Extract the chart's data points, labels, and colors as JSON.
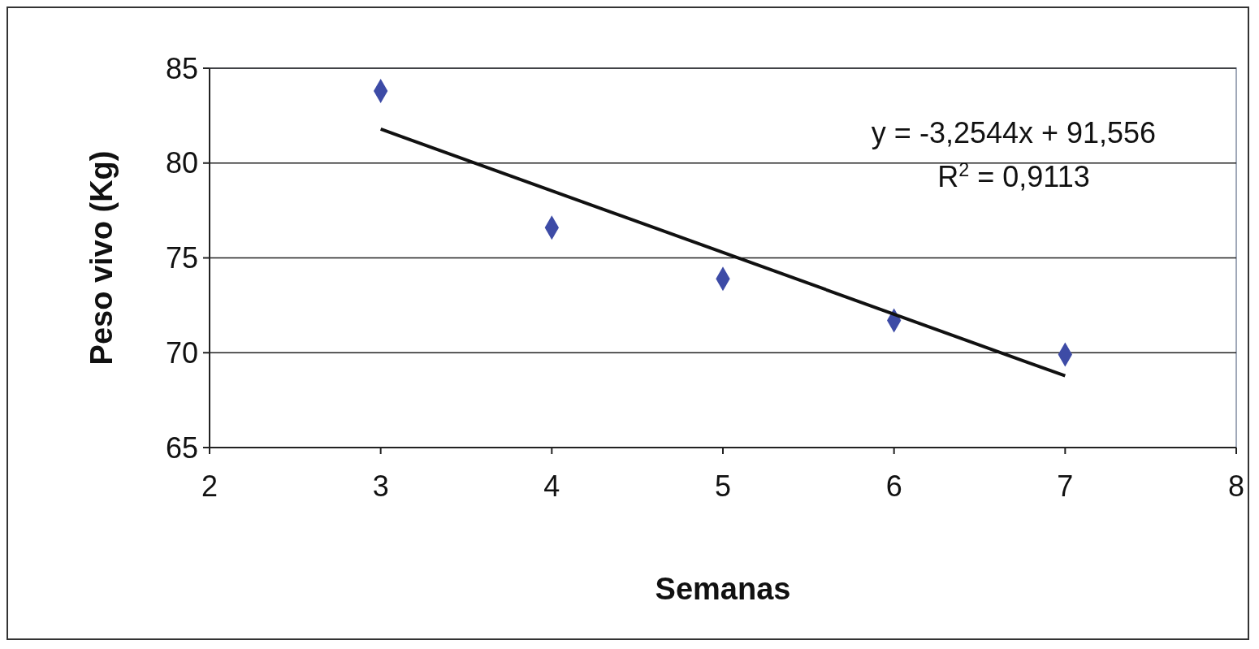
{
  "chart_data": {
    "type": "scatter",
    "xlabel": "Semanas",
    "ylabel": "Peso vivo (Kg)",
    "xlim": [
      2,
      8
    ],
    "xticks": [
      2,
      3,
      4,
      5,
      6,
      7,
      8
    ],
    "ylim": [
      65,
      85
    ],
    "yticks": [
      65,
      70,
      75,
      80,
      85
    ],
    "grid": "y",
    "marker": "diamond",
    "series": [
      {
        "color": "#3d4ba6",
        "x": [
          3,
          4,
          5,
          6,
          7
        ],
        "values": [
          83.8,
          76.6,
          73.9,
          71.7,
          69.9
        ]
      },
      {
        "type": "line",
        "color": "#111111",
        "marker": "none",
        "line_style": "solid",
        "x": [
          3,
          7
        ],
        "values": [
          81.79,
          68.78
        ]
      }
    ],
    "annotations": [
      "y = -3,2544x + 91,556",
      "R$^{2}$ = 0,9113"
    ]
  }
}
